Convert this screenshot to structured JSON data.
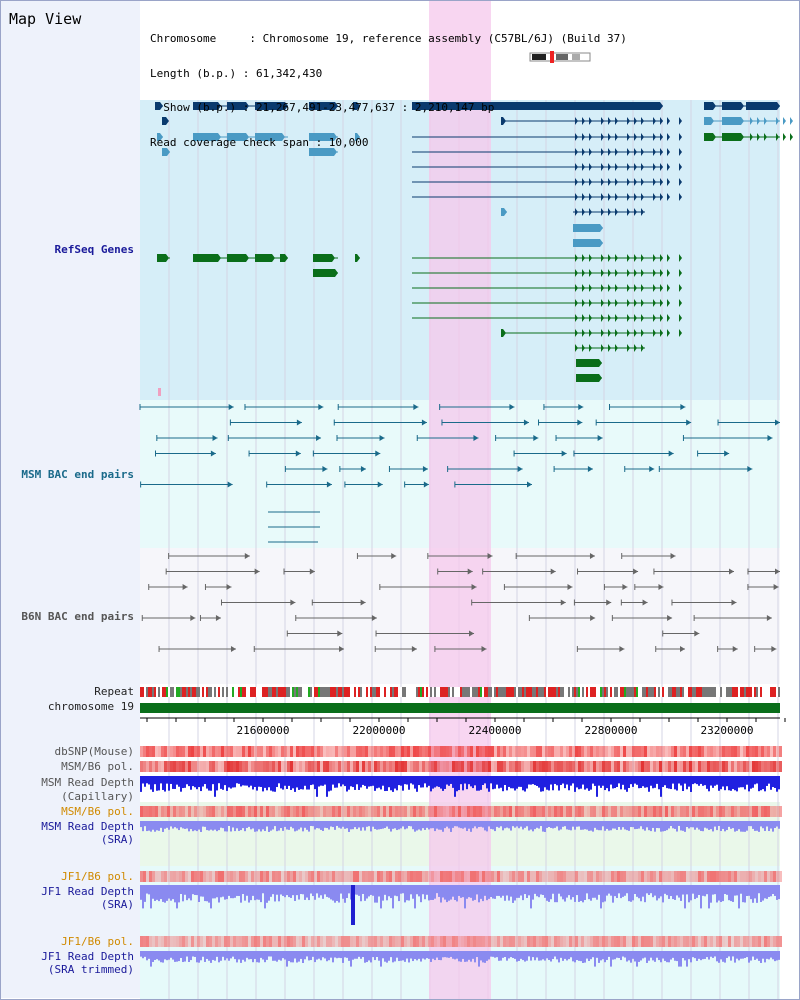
{
  "header": {
    "title": "Map View",
    "info_lines": [
      "Chromosome     : Chromosome 19, reference assembly (C57BL/6J) (Build 37)",
      "Length (b.p.) : 61,342,430",
      "  Show (b.p.) : 21,267,491-23,477,637 : 2,210,147 bp",
      "Read coverage check span : 10,000"
    ]
  },
  "tracks": {
    "refseq": "RefSeq Genes",
    "msm_bac": "MSM BAC end pairs",
    "b6n_bac": "B6N BAC end pairs",
    "repeat": "Repeat",
    "chromosome": "chromosome 19",
    "dbsnp": "dbSNP(Mouse)",
    "msm_b6_pol_1": "MSM/B6 pol.",
    "msm_depth_cap_1": "MSM Read Depth",
    "msm_depth_cap_2": "(Capillary)",
    "msm_b6_pol_2": "MSM/B6 pol.",
    "msm_depth_sra_1": "MSM Read Depth",
    "msm_depth_sra_2": "(SRA)",
    "jf1_b6_pol_1": "JF1/B6 pol.",
    "jf1_depth_sra_1": "JF1 Read Depth",
    "jf1_depth_sra_2": "(SRA)",
    "jf1_b6_pol_2": "JF1/B6 pol.",
    "jf1_depth_trim_1": "JF1 Read Depth",
    "jf1_depth_trim_2": "(SRA trimmed)"
  },
  "axis": {
    "ticks": [
      "21600000",
      "22000000",
      "22400000",
      "22800000",
      "23200000"
    ]
  },
  "colors": {
    "refseq_bg": "#d6eef8",
    "msm_bac_bg": "#e8fafa",
    "b6n_bac_bg": "#f6f6fa",
    "highlight": "#f6c8ec",
    "gene_dark": "#0a3a6e",
    "gene_mid": "#4a9ac4",
    "gene_green": "#0a6e1a",
    "bac_teal": "#1a6a8a",
    "bac_gray": "#666666",
    "depth_blue": "#2020e0",
    "depth_light": "#8a8af0",
    "pol_red": "#ee4444"
  }
}
